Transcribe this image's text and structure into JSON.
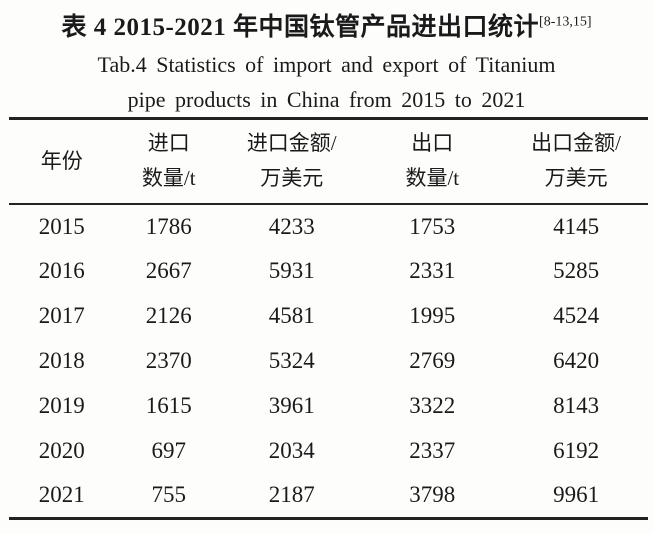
{
  "title": {
    "zh": "表 4  2015-2021 年中国钛管产品进出口统计",
    "citation": "[8-13,15]",
    "en_line1": "Tab.4  Statistics of import and export of Titanium",
    "en_line2": "pipe products in China from 2015 to 2021"
  },
  "table": {
    "columns": [
      {
        "line1": "年份",
        "line2": ""
      },
      {
        "line1": "进口",
        "line2": "数量/t"
      },
      {
        "line1": "进口金额/",
        "line2": "万美元"
      },
      {
        "line1": "出口",
        "line2": "数量/t"
      },
      {
        "line1": "出口金额/",
        "line2": "万美元"
      }
    ],
    "rows": [
      [
        "2015",
        "1786",
        "4233",
        "1753",
        "4145"
      ],
      [
        "2016",
        "2667",
        "5931",
        "2331",
        "5285"
      ],
      [
        "2017",
        "2126",
        "4581",
        "1995",
        "4524"
      ],
      [
        "2018",
        "2370",
        "5324",
        "2769",
        "6420"
      ],
      [
        "2019",
        "1615",
        "3961",
        "3322",
        "8143"
      ],
      [
        "2020",
        "697",
        "2034",
        "2337",
        "6192"
      ],
      [
        "2021",
        "755",
        "2187",
        "3798",
        "9961"
      ]
    ]
  },
  "chart_data": {
    "type": "table",
    "title": "2015-2021 年中国钛管产品进出口统计 / Statistics of import and export of Titanium pipe products in China from 2015 to 2021",
    "categories": [
      2015,
      2016,
      2017,
      2018,
      2019,
      2020,
      2021
    ],
    "series": [
      {
        "name": "进口数量/t",
        "values": [
          1786,
          2667,
          2126,
          2370,
          1615,
          697,
          755
        ]
      },
      {
        "name": "进口金额/万美元",
        "values": [
          4233,
          5931,
          4581,
          5324,
          3961,
          2034,
          2187
        ]
      },
      {
        "name": "出口数量/t",
        "values": [
          1753,
          2331,
          1995,
          2769,
          3322,
          2337,
          3798
        ]
      },
      {
        "name": "出口金额/万美元",
        "values": [
          4145,
          5285,
          4524,
          6420,
          8143,
          6192,
          9961
        ]
      }
    ]
  },
  "colors": {
    "text": "#1a1a1a",
    "rule": "#232323",
    "background": "#fdfdfc"
  }
}
